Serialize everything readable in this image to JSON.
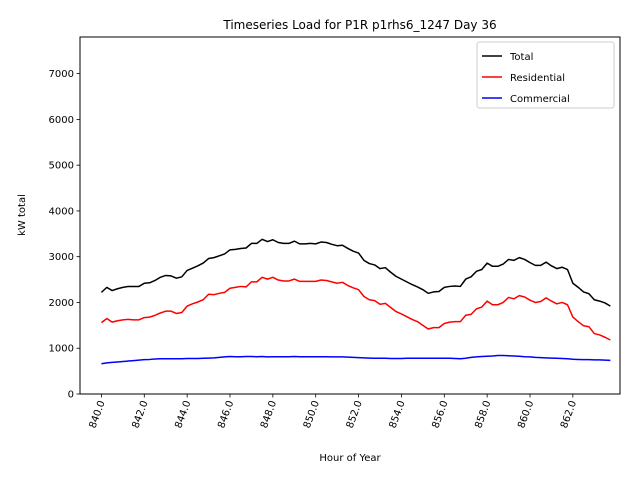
{
  "chart_data": {
    "type": "line",
    "title": "Timeseries Load for P1R p1rhs6_1247  Day 36",
    "xlabel": "Hour of Year",
    "ylabel": "kW total",
    "xlim": [
      839.0,
      864.2
    ],
    "ylim": [
      0,
      7800
    ],
    "xticks": [
      840,
      842,
      844,
      846,
      848,
      850,
      852,
      854,
      856,
      858,
      860,
      862
    ],
    "xtick_labels": [
      "840.0",
      "842.0",
      "844.0",
      "846.0",
      "848.0",
      "850.0",
      "852.0",
      "854.0",
      "856.0",
      "858.0",
      "860.0",
      "862.0"
    ],
    "yticks": [
      0,
      1000,
      2000,
      3000,
      4000,
      5000,
      6000,
      7000
    ],
    "ytick_labels": [
      "0",
      "1000",
      "2000",
      "3000",
      "4000",
      "5000",
      "6000",
      "7000"
    ],
    "grid": false,
    "legend_position": "top-right",
    "x": [
      840.0,
      840.25,
      840.5,
      840.75,
      841.0,
      841.25,
      841.5,
      841.75,
      842.0,
      842.25,
      842.5,
      842.75,
      843.0,
      843.25,
      843.5,
      843.75,
      844.0,
      844.25,
      844.5,
      844.75,
      845.0,
      845.25,
      845.5,
      845.75,
      846.0,
      846.25,
      846.5,
      846.75,
      847.0,
      847.25,
      847.5,
      847.75,
      848.0,
      848.25,
      848.5,
      848.75,
      849.0,
      849.25,
      849.5,
      849.75,
      850.0,
      850.25,
      850.5,
      850.75,
      851.0,
      851.25,
      851.5,
      851.75,
      852.0,
      852.25,
      852.5,
      852.75,
      853.0,
      853.25,
      853.5,
      853.75,
      854.0,
      854.25,
      854.5,
      854.75,
      855.0,
      855.25,
      855.5,
      855.75,
      856.0,
      856.25,
      856.5,
      856.75,
      857.0,
      857.25,
      857.5,
      857.75,
      858.0,
      858.25,
      858.5,
      858.75,
      859.0,
      859.25,
      859.5,
      859.75,
      860.0,
      860.25,
      860.5,
      860.75,
      861.0,
      861.25,
      861.5,
      861.75,
      862.0,
      862.25,
      862.5,
      862.75,
      863.0,
      863.25,
      863.5,
      863.75
    ],
    "series": [
      {
        "name": "Total",
        "color": "#000000",
        "values": [
          2220,
          2330,
          2260,
          2300,
          2330,
          2350,
          2350,
          2350,
          2420,
          2430,
          2480,
          2550,
          2590,
          2580,
          2530,
          2560,
          2700,
          2750,
          2800,
          2860,
          2960,
          2980,
          3020,
          3060,
          3150,
          3160,
          3180,
          3190,
          3290,
          3290,
          3380,
          3330,
          3370,
          3310,
          3290,
          3290,
          3340,
          3280,
          3280,
          3290,
          3280,
          3320,
          3310,
          3270,
          3240,
          3250,
          3180,
          3120,
          3080,
          2920,
          2850,
          2820,
          2740,
          2760,
          2660,
          2570,
          2510,
          2450,
          2390,
          2340,
          2280,
          2200,
          2230,
          2240,
          2330,
          2350,
          2360,
          2350,
          2510,
          2560,
          2680,
          2720,
          2860,
          2790,
          2790,
          2840,
          2940,
          2920,
          2980,
          2940,
          2870,
          2810,
          2810,
          2880,
          2800,
          2740,
          2770,
          2720,
          2420,
          2330,
          2230,
          2190,
          2060,
          2030,
          1990,
          1920
        ]
      },
      {
        "name": "Residential",
        "color": "#ff0000",
        "values": [
          1560,
          1650,
          1570,
          1600,
          1620,
          1630,
          1620,
          1620,
          1670,
          1680,
          1720,
          1770,
          1810,
          1810,
          1760,
          1780,
          1920,
          1970,
          2010,
          2060,
          2180,
          2170,
          2200,
          2220,
          2310,
          2330,
          2350,
          2340,
          2450,
          2450,
          2550,
          2510,
          2550,
          2490,
          2470,
          2470,
          2510,
          2460,
          2460,
          2460,
          2460,
          2490,
          2480,
          2450,
          2420,
          2440,
          2370,
          2320,
          2280,
          2130,
          2060,
          2040,
          1960,
          1980,
          1890,
          1800,
          1750,
          1690,
          1630,
          1580,
          1500,
          1420,
          1450,
          1450,
          1540,
          1570,
          1580,
          1580,
          1720,
          1740,
          1860,
          1900,
          2030,
          1950,
          1950,
          2000,
          2110,
          2080,
          2150,
          2120,
          2050,
          2000,
          2020,
          2100,
          2030,
          1970,
          2000,
          1950,
          1680,
          1580,
          1490,
          1470,
          1320,
          1290,
          1240,
          1180
        ]
      },
      {
        "name": "Commercial",
        "color": "#0000ff",
        "values": [
          660,
          680,
          690,
          700,
          710,
          720,
          730,
          740,
          750,
          755,
          765,
          770,
          770,
          770,
          770,
          770,
          775,
          775,
          775,
          780,
          785,
          790,
          800,
          810,
          820,
          815,
          815,
          820,
          820,
          815,
          820,
          810,
          815,
          815,
          815,
          815,
          820,
          815,
          815,
          815,
          815,
          815,
          815,
          810,
          810,
          810,
          805,
          800,
          795,
          790,
          785,
          780,
          780,
          780,
          775,
          775,
          775,
          780,
          780,
          780,
          780,
          780,
          780,
          780,
          780,
          780,
          775,
          770,
          780,
          800,
          810,
          820,
          825,
          830,
          840,
          840,
          835,
          830,
          825,
          815,
          810,
          800,
          795,
          790,
          785,
          780,
          775,
          770,
          760,
          755,
          750,
          750,
          745,
          745,
          740,
          735
        ]
      }
    ]
  }
}
